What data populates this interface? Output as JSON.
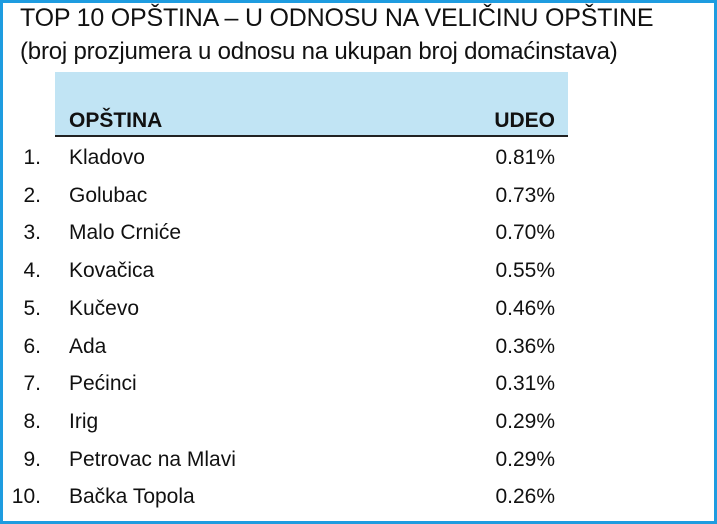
{
  "title": "TOP 10 OPŠTINA – U ODNOSU NA VELIČINU OPŠTINE",
  "subtitle": "(broj prozjumera u odnosu na ukupan broj domaćinstava)",
  "colors": {
    "border": "#1e9ce0",
    "header_bg": "#c1e4f4"
  },
  "table": {
    "headers": [
      "OPŠTINA",
      "UDEO"
    ],
    "rows": [
      {
        "rank": "1.",
        "name": "Kladovo",
        "share": "0.81%"
      },
      {
        "rank": "2.",
        "name": "Golubac",
        "share": "0.73%"
      },
      {
        "rank": "3.",
        "name": "Malo Crniće",
        "share": "0.70%"
      },
      {
        "rank": "4.",
        "name": "Kovačica",
        "share": "0.55%"
      },
      {
        "rank": "5.",
        "name": "Kučevo",
        "share": "0.46%"
      },
      {
        "rank": "6.",
        "name": "Ada",
        "share": "0.36%"
      },
      {
        "rank": "7.",
        "name": "Pećinci",
        "share": "0.31%"
      },
      {
        "rank": "8.",
        "name": "Irig",
        "share": "0.29%"
      },
      {
        "rank": "9.",
        "name": "Petrovac na Mlavi",
        "share": "0.29%"
      },
      {
        "rank": "10.",
        "name": "Bačka Topola",
        "share": "0.26%"
      }
    ]
  }
}
